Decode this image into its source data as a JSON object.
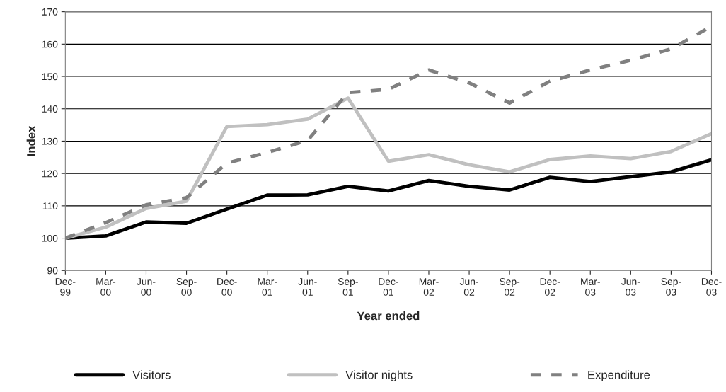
{
  "chart_data": {
    "type": "line",
    "xlabel": "Year ended",
    "ylabel": "Index",
    "categories": [
      "Dec-\n99",
      "Mar-\n00",
      "Jun-\n00",
      "Sep-\n00",
      "Dec-\n00",
      "Mar-\n01",
      "Jun-\n01",
      "Sep-\n01",
      "Dec-\n01",
      "Mar-\n02",
      "Jun-\n02",
      "Sep-\n02",
      "Dec-\n02",
      "Mar-\n03",
      "Jun-\n03",
      "Sep-\n03",
      "Dec-\n03"
    ],
    "series": [
      {
        "name": "Visitors",
        "color": "#000000",
        "line_style": "solid",
        "values": [
          100,
          100.7,
          105,
          104.6,
          109,
          113.3,
          113.4,
          116,
          114.6,
          117.8,
          116,
          114.9,
          118.8,
          117.5,
          119,
          120.5,
          124.2
        ]
      },
      {
        "name": "Visitor nights",
        "color": "#c0c0c0",
        "line_style": "solid",
        "values": [
          100,
          103.4,
          109.2,
          111.4,
          134.5,
          135.1,
          136.8,
          143.3,
          123.8,
          125.8,
          122.7,
          120.5,
          124.3,
          125.4,
          124.6,
          126.8,
          132.3
        ]
      },
      {
        "name": "Expenditure",
        "color": "#808080",
        "line_style": "dashed",
        "values": [
          100,
          104.8,
          110.3,
          112.5,
          123.2,
          126.5,
          130.2,
          145,
          146,
          152,
          148,
          141.8,
          148.5,
          152,
          155,
          158.5,
          165.5
        ]
      }
    ],
    "ylim": [
      90,
      170
    ],
    "yticks": [
      90,
      100,
      110,
      120,
      130,
      140,
      150,
      160,
      170
    ],
    "grid": "y",
    "legend": "bottom"
  }
}
